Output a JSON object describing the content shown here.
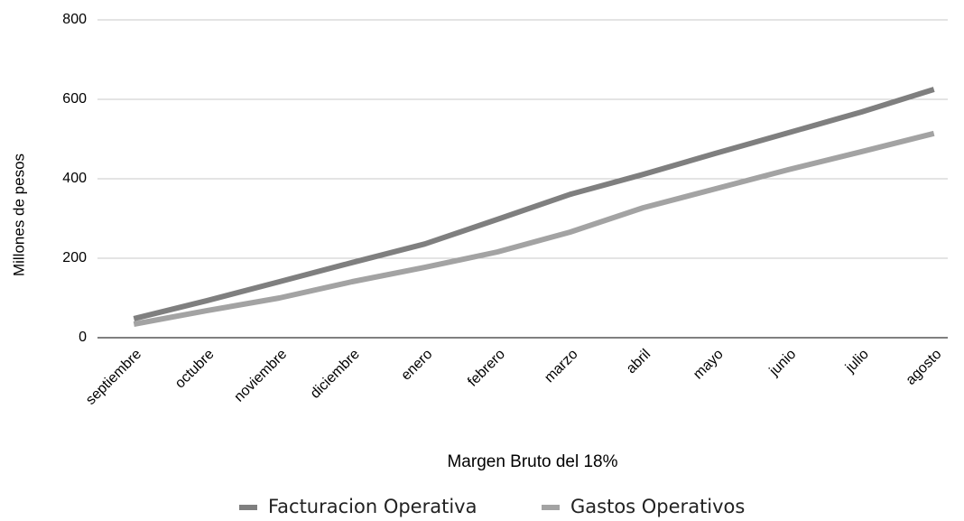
{
  "chart_data": {
    "type": "line",
    "x_label": "Margen Bruto  del 18%",
    "y_label": "Millones de pesos",
    "categories": [
      "septiembre",
      "octubre",
      "noviembre",
      "diciembre",
      "enero",
      "febrero",
      "marzo",
      "abril",
      "mayo",
      "junio",
      "julio",
      "agosto"
    ],
    "series": [
      {
        "name": "Facturacion Operativa",
        "color": "#7f7f7f",
        "values": [
          48,
          93,
          141,
          189,
          236,
          298,
          361,
          411,
          464,
          516,
          568,
          625
        ]
      },
      {
        "name": "Gastos Operativos",
        "color": "#a3a3a3",
        "values": [
          34,
          68,
          100,
          141,
          177,
          216,
          266,
          327,
          375,
          423,
          468,
          514
        ]
      }
    ],
    "ylim": [
      0,
      800
    ],
    "yticks": [
      0,
      200,
      400,
      600,
      800
    ],
    "grid": true,
    "legend": "bottom"
  }
}
